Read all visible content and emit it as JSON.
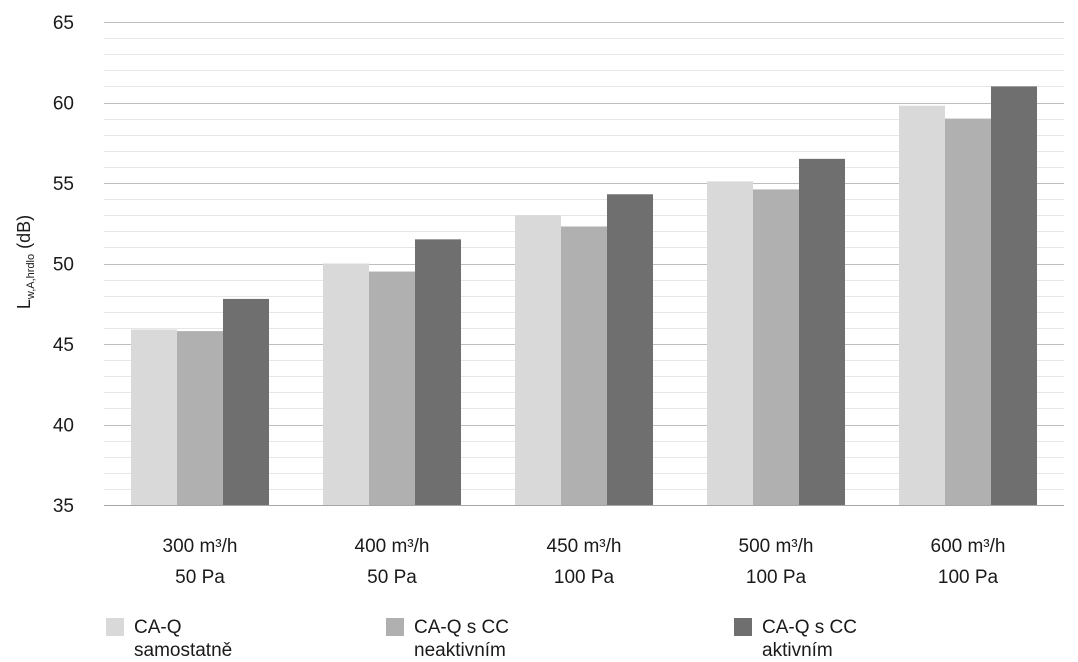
{
  "chart_data": {
    "type": "bar",
    "ylabel_main": "L",
    "ylabel_sub": "w,A,hrdlo",
    "ylabel_unit": " (dB)",
    "ylim": [
      35,
      65
    ],
    "yticks": [
      35,
      40,
      45,
      50,
      55,
      60,
      65
    ],
    "grid": true,
    "legend_position": "bottom",
    "categories": [
      {
        "line1": "300 m³/h",
        "line2": "50 Pa"
      },
      {
        "line1": "400 m³/h",
        "line2": "50 Pa"
      },
      {
        "line1": "450 m³/h",
        "line2": "100 Pa"
      },
      {
        "line1": "500 m³/h",
        "line2": "100 Pa"
      },
      {
        "line1": "600 m³/h",
        "line2": "100 Pa"
      }
    ],
    "series": [
      {
        "name": "CA-Q\nsamostatně",
        "color": "#d9d9d9",
        "values": [
          45.9,
          50.0,
          53.0,
          55.1,
          59.8
        ]
      },
      {
        "name": "CA-Q s CC\nneaktivním",
        "color": "#b0b0b0",
        "values": [
          45.8,
          49.5,
          52.3,
          54.6,
          59.0
        ]
      },
      {
        "name": "CA-Q s CC\naktivním",
        "color": "#6f6f6f",
        "values": [
          47.8,
          51.5,
          54.3,
          56.5,
          61.0
        ]
      }
    ]
  }
}
